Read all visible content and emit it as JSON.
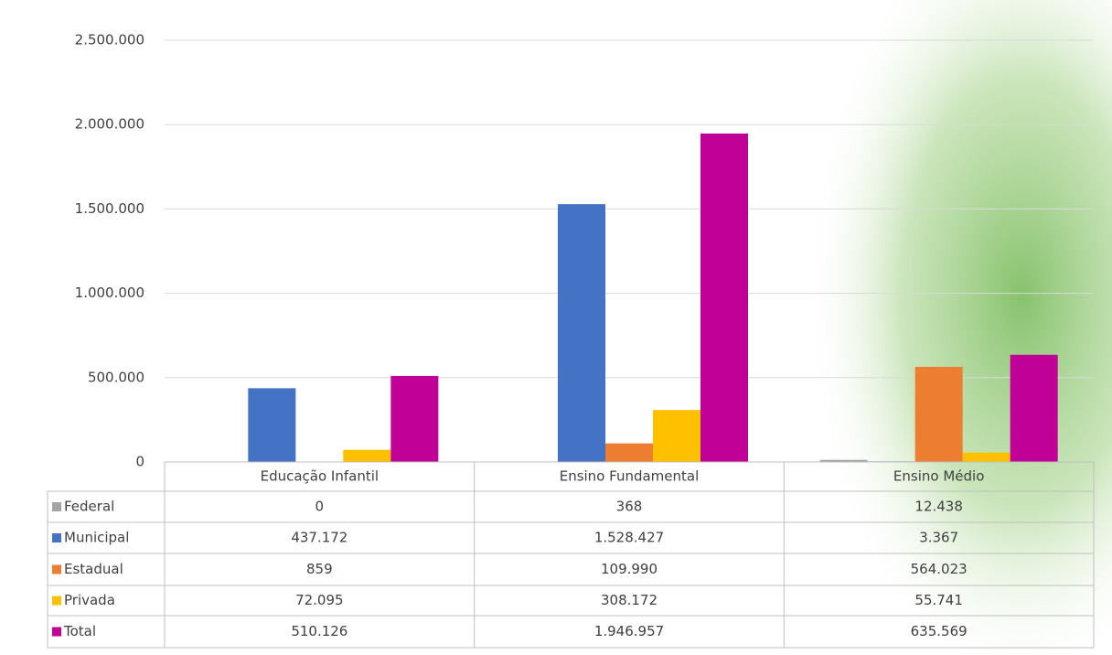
{
  "chart_data": {
    "type": "bar",
    "categories": [
      "Educação Infantil",
      "Ensino Fundamental",
      "Ensino Médio"
    ],
    "series": [
      {
        "name": "Federal",
        "color": "#a5a5a5",
        "values": [
          0,
          368,
          12438
        ],
        "value_labels": [
          "0",
          "368",
          "12.438"
        ]
      },
      {
        "name": "Municipal",
        "color": "#4472c4",
        "values": [
          437172,
          1528427,
          3367
        ],
        "value_labels": [
          "437.172",
          "1.528.427",
          "3.367"
        ]
      },
      {
        "name": "Estadual",
        "color": "#ed7d31",
        "values": [
          859,
          109990,
          564023
        ],
        "value_labels": [
          "859",
          "109.990",
          "564.023"
        ]
      },
      {
        "name": "Privada",
        "color": "#ffc000",
        "values": [
          72095,
          308172,
          55741
        ],
        "value_labels": [
          "72.095",
          "308.172",
          "55.741"
        ]
      },
      {
        "name": "Total",
        "color": "#c00096",
        "values": [
          510126,
          1946957,
          635569
        ],
        "value_labels": [
          "510.126",
          "1.946.957",
          "635.569"
        ]
      }
    ],
    "ylim": [
      0,
      2500000
    ],
    "yticks": [
      0,
      {
        "value": 500000,
        "label": "500.000"
      },
      {
        "value": 1000000,
        "label": "1.000.000"
      },
      {
        "value": 1500000,
        "label": "1.500.000"
      },
      {
        "value": 2000000,
        "label": "2.000.000"
      },
      {
        "value": 2500000,
        "label": "2.500.000"
      }
    ],
    "grid": true
  }
}
